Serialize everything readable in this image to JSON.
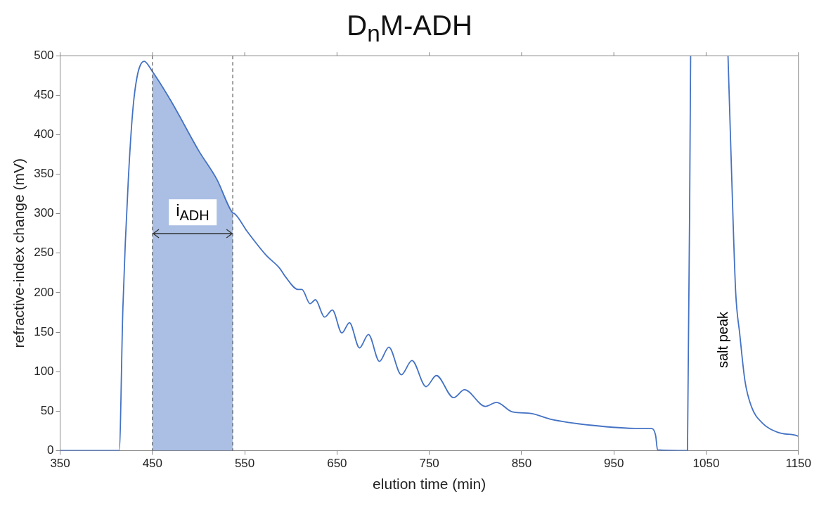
{
  "chart_data": {
    "type": "line",
    "title": "D$_{n}$M-ADH",
    "xlabel": "elution time (min)",
    "ylabel": "refractive-index change (mV)",
    "xlim": [
      350,
      1150
    ],
    "xticks": [
      350,
      450,
      550,
      650,
      750,
      850,
      950,
      1050,
      1150
    ],
    "ylim": [
      0,
      500
    ],
    "yticks": [
      0,
      50,
      100,
      150,
      200,
      250,
      300,
      350,
      400,
      450,
      500
    ],
    "grid": false,
    "legend": false,
    "series": [
      {
        "type": "line",
        "color": "#4472c4",
        "marker": "none",
        "line_style": "solid",
        "x": [
          350,
          414,
          418,
          424,
          430,
          441,
          450,
          470,
          500,
          520,
          537,
          539,
          553,
          573.5,
          587.8,
          593.6,
          608,
          612,
          620.8,
          626.6,
          636.5,
          645,
          655.3,
          663.5,
          674.4,
          684.1,
          696,
          706.2,
          719.7,
          731.2,
          746.5,
          757.7,
          776.3,
          788.2,
          810.7,
          822.9,
          840,
          860.3,
          880.7,
          926.5,
          977.4,
          990.2,
          995.3,
          997.3,
          1029.8,
          1033.2,
          1050,
          1073.7,
          1077.7,
          1082,
          1086.4,
          1092.1,
          1099.3,
          1110.8,
          1128,
          1148,
          1150
        ],
        "values": [
          0,
          0,
          181,
          346,
          446,
          493,
          480,
          443,
          380,
          343,
          301,
          300,
          277,
          247,
          231,
          221,
          204,
          204,
          186,
          191,
          169,
          178,
          149,
          162,
          130,
          147,
          113,
          131,
          96,
          114,
          81,
          95,
          67,
          77,
          56,
          61,
          49,
          47,
          40,
          32,
          28,
          28,
          19,
          1,
          0,
          500,
          null,
          500,
          347,
          201,
          148,
          88,
          55,
          35,
          23,
          19,
          18
        ]
      },
      {
        "type": "area",
        "color": "#4472c4",
        "x": [
          450,
          470,
          500,
          520,
          537
        ],
        "values": [
          480,
          443,
          380,
          343,
          301
        ]
      }
    ],
    "ref_lines": [
      {
        "axis": "x",
        "value": 450,
        "line_style": "dashed",
        "color": "#404040"
      },
      {
        "axis": "x",
        "value": 537,
        "line_style": "dashed",
        "color": "#404040"
      }
    ],
    "annotations": [
      "i$_{ADH}$",
      "salt peak"
    ]
  }
}
